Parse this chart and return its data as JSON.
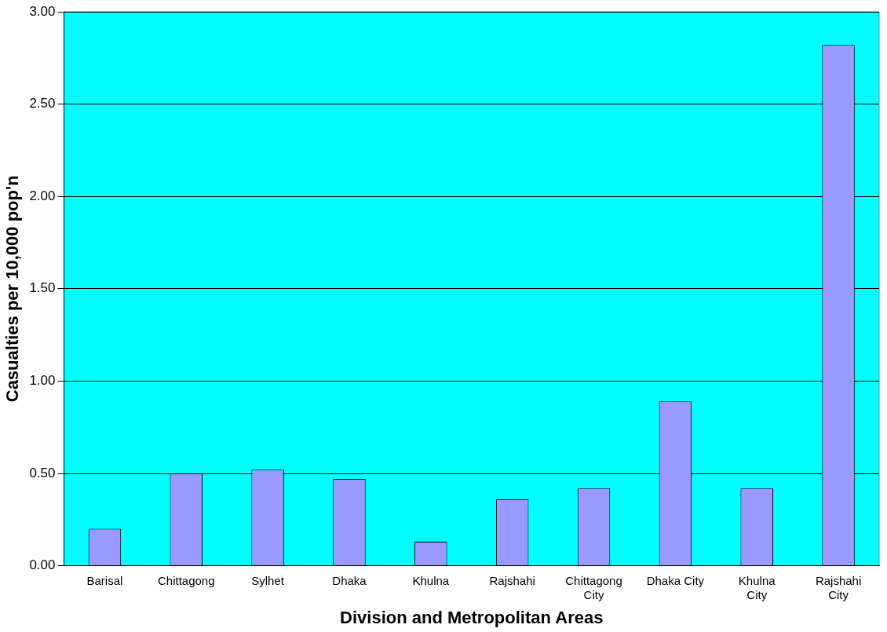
{
  "chart_data": {
    "type": "bar",
    "xlabel": "Division and Metropolitan Areas",
    "ylabel": "Casualties per 10,000 pop'n",
    "categories": [
      "Barisal",
      "Chittagong",
      "Sylhet",
      "Dhaka",
      "Khulna",
      "Rajshahi",
      "Chittagong City",
      "Dhaka City",
      "Khulna City",
      "Rajshahi City"
    ],
    "values": [
      0.2,
      0.5,
      0.52,
      0.47,
      0.13,
      0.36,
      0.42,
      0.89,
      0.42,
      2.82
    ],
    "color": "#9999ff",
    "ylim": [
      0,
      3
    ],
    "yticks": [
      {
        "value": 0,
        "label": "0.00"
      },
      {
        "value": 0.5,
        "label": "0.50"
      },
      {
        "value": 1,
        "label": "1.00"
      },
      {
        "value": 1.5,
        "label": "1.50"
      },
      {
        "value": 2,
        "label": "2.00"
      },
      {
        "value": 2.5,
        "label": "2.50"
      },
      {
        "value": 3,
        "label": "3.00"
      }
    ],
    "grid": "y",
    "legend": false
  }
}
